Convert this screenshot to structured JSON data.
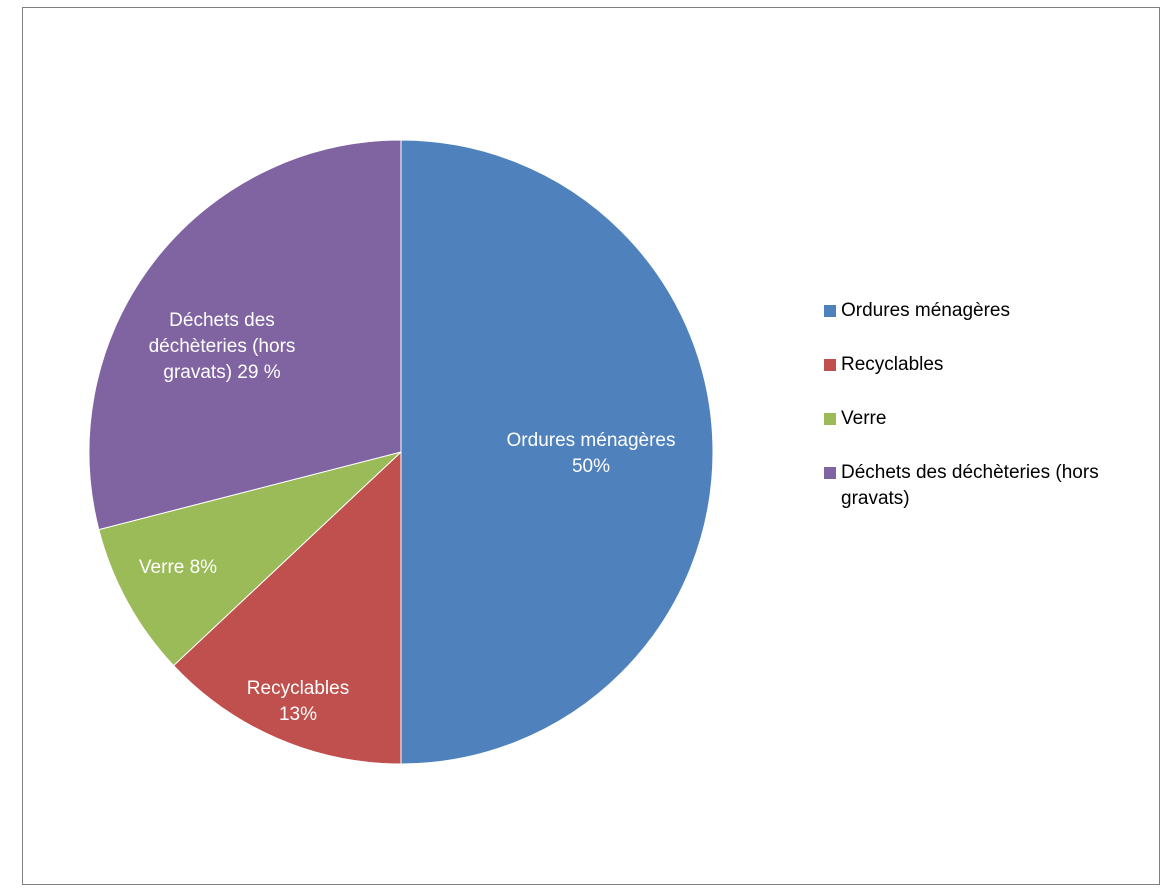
{
  "chart_data": {
    "type": "pie",
    "title": "",
    "slices": [
      {
        "label": "Ordures ménagères",
        "value": 50,
        "data_label_line1": "Ordures ménagères",
        "data_label_line2": "50%",
        "color": "#4f81bd"
      },
      {
        "label": "Recyclables",
        "value": 13,
        "data_label_line1": "Recyclables",
        "data_label_line2": "13%",
        "color": "#c0504d"
      },
      {
        "label": "Verre",
        "value": 8,
        "data_label_line1": "Verre  8%",
        "data_label_line2": "",
        "color": "#9bbb59"
      },
      {
        "label": "Déchets des déchèteries (hors gravats)",
        "value": 29,
        "data_label_line1": "Déchets des",
        "data_label_line2": "déchèteries (hors",
        "data_label_line3": "gravats)  29 %",
        "color": "#8064a2"
      }
    ],
    "legend": {
      "placement": "right",
      "items": [
        {
          "line1": "Ordures ménagères",
          "line2": ""
        },
        {
          "line1": "Recyclables",
          "line2": ""
        },
        {
          "line1": "Verre",
          "line2": ""
        },
        {
          "line1": "Déchets des déchèteries (hors",
          "line2": "gravats)"
        }
      ]
    }
  }
}
